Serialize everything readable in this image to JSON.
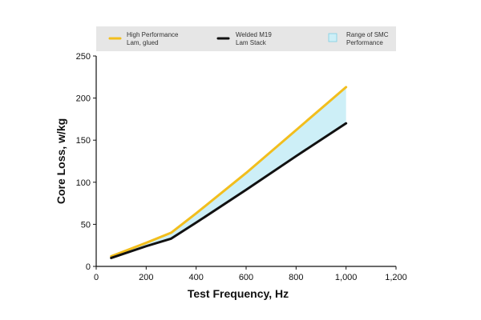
{
  "chart_data": {
    "type": "line",
    "title": "",
    "xlabel": "Test Frequency, Hz",
    "ylabel": "Core Loss, w/kg",
    "xlim": [
      0,
      1200
    ],
    "ylim": [
      0,
      250
    ],
    "x_ticks": [
      0,
      200,
      400,
      600,
      800,
      1000,
      1200
    ],
    "x_tick_labels": [
      "0",
      "200",
      "400",
      "600",
      "800",
      "1,000",
      "1,200"
    ],
    "y_ticks": [
      0,
      50,
      100,
      150,
      200,
      250
    ],
    "y_tick_labels": [
      "0",
      "50",
      "100",
      "150",
      "200",
      "250"
    ],
    "grid": false,
    "legend_position": "top",
    "series": [
      {
        "name": "High Performance Lam, glued",
        "legend_lines": [
          "High Performance",
          "Lam, glued"
        ],
        "color": "#F2BE1D",
        "x": [
          60,
          200,
          300,
          400,
          600,
          800,
          1000
        ],
        "y": [
          12,
          28,
          40,
          63,
          111,
          162,
          213
        ]
      },
      {
        "name": "Welded M19 Lam Stack",
        "legend_lines": [
          "Welded M19",
          "Lam Stack"
        ],
        "color": "#111111",
        "x": [
          60,
          200,
          300,
          400,
          600,
          800,
          1000
        ],
        "y": [
          10,
          24,
          33,
          52,
          91,
          131,
          170
        ]
      }
    ],
    "band": {
      "name": "Range of SMC Performance",
      "legend_lines": [
        "Range of SMC",
        "Performance"
      ],
      "fill": "#CDEFF7",
      "stroke": "#7FCFE3",
      "between": [
        "High Performance Lam, glued",
        "Welded M19 Lam Stack"
      ]
    },
    "colors": {
      "legend_background": "#E6E6E6",
      "axis": "#111111"
    }
  }
}
